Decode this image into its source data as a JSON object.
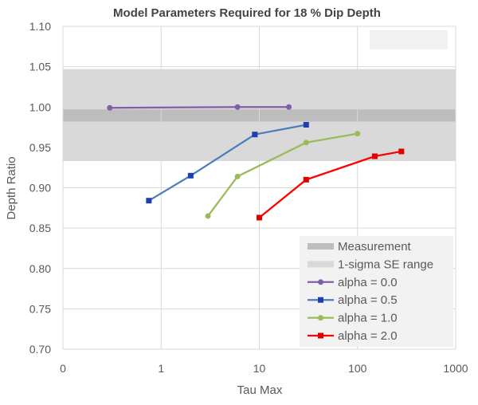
{
  "chart_data": {
    "type": "line",
    "title": "Model Parameters Required for 18 % Dip Depth",
    "xlabel": "Tau Max",
    "ylabel": "Depth Ratio",
    "x_scale": "log",
    "x_tick_labels": [
      "0",
      "1",
      "10",
      "100",
      "1000"
    ],
    "x_tick_values": [
      0.1,
      1,
      10,
      100,
      1000
    ],
    "xlim": [
      0.1,
      1000
    ],
    "ylim": [
      0.7,
      1.1
    ],
    "y_ticks": [
      0.7,
      0.75,
      0.8,
      0.85,
      0.9,
      0.95,
      1.0,
      1.05,
      1.1
    ],
    "y_tick_labels": [
      "0.70",
      "0.75",
      "0.80",
      "0.85",
      "0.90",
      "0.95",
      "1.00",
      "1.05",
      "1.10"
    ],
    "grid": true,
    "legend_position": "bottom-right",
    "bands": [
      {
        "name": "Measurement",
        "lo": 0.982,
        "hi": 0.997,
        "color": "#bdbdbd"
      },
      {
        "name": "1-sigma SE range",
        "lo": 0.933,
        "hi": 1.047,
        "color": "#d9d9d9"
      }
    ],
    "series": [
      {
        "name": "alpha = 0.0",
        "color": "#7f5fa8",
        "marker": "circle",
        "x": [
          0.3,
          6,
          20
        ],
        "y": [
          0.999,
          1.0,
          1.0
        ]
      },
      {
        "name": "alpha = 0.5",
        "color": "#4a7ebb",
        "marker_color": "#1f3fae",
        "marker": "square",
        "x": [
          0.75,
          2,
          9,
          30
        ],
        "y": [
          0.884,
          0.915,
          0.966,
          0.978
        ]
      },
      {
        "name": "alpha = 1.0",
        "color": "#9bbb59",
        "marker": "circle",
        "x": [
          3,
          6,
          30,
          100
        ],
        "y": [
          0.865,
          0.914,
          0.956,
          0.967
        ]
      },
      {
        "name": "alpha = 2.0",
        "color": "#ff0000",
        "marker_color": "#e00000",
        "marker": "square",
        "x": [
          10,
          30,
          150,
          280
        ],
        "y": [
          0.863,
          0.91,
          0.939,
          0.945
        ]
      }
    ]
  }
}
